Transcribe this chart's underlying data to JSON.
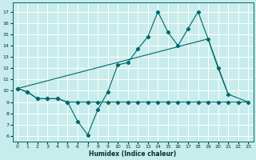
{
  "xlabel": "Humidex (Indice chaleur)",
  "bg_color": "#c8ecec",
  "grid_color": "#ffffff",
  "line_color": "#006868",
  "xlim": [
    -0.5,
    23.5
  ],
  "ylim": [
    5.5,
    17.8
  ],
  "xticks": [
    0,
    1,
    2,
    3,
    4,
    5,
    6,
    7,
    8,
    9,
    10,
    11,
    12,
    13,
    14,
    15,
    16,
    17,
    18,
    19,
    20,
    21,
    22,
    23
  ],
  "yticks": [
    6,
    7,
    8,
    9,
    10,
    11,
    12,
    13,
    14,
    15,
    16,
    17
  ],
  "line1_x": [
    0,
    1,
    2,
    3,
    4,
    5,
    6,
    7,
    8,
    9,
    10,
    11,
    12,
    13,
    14,
    15,
    16,
    17,
    18,
    19,
    20,
    21
  ],
  "line1_y": [
    10.2,
    9.9,
    9.3,
    9.3,
    9.3,
    9.0,
    7.3,
    6.1,
    8.3,
    9.9,
    12.3,
    12.5,
    13.7,
    14.8,
    17.0,
    15.2,
    14.0,
    15.5,
    17.0,
    14.6,
    12.0,
    9.7
  ],
  "line2_x": [
    0,
    1,
    2,
    3,
    4,
    5,
    6,
    7,
    8,
    9,
    10,
    11,
    12,
    13,
    14,
    15,
    16,
    17,
    18,
    19,
    20,
    21,
    22,
    23
  ],
  "line2_y": [
    10.2,
    9.9,
    9.3,
    9.3,
    9.3,
    9.0,
    9.0,
    9.0,
    9.0,
    9.0,
    9.0,
    9.0,
    9.0,
    9.0,
    9.0,
    9.0,
    9.0,
    9.0,
    9.0,
    9.0,
    9.0,
    9.0,
    9.0,
    9.0
  ],
  "line3_x": [
    0,
    19,
    21,
    23
  ],
  "line3_y": [
    10.2,
    14.6,
    9.7,
    9.0
  ]
}
